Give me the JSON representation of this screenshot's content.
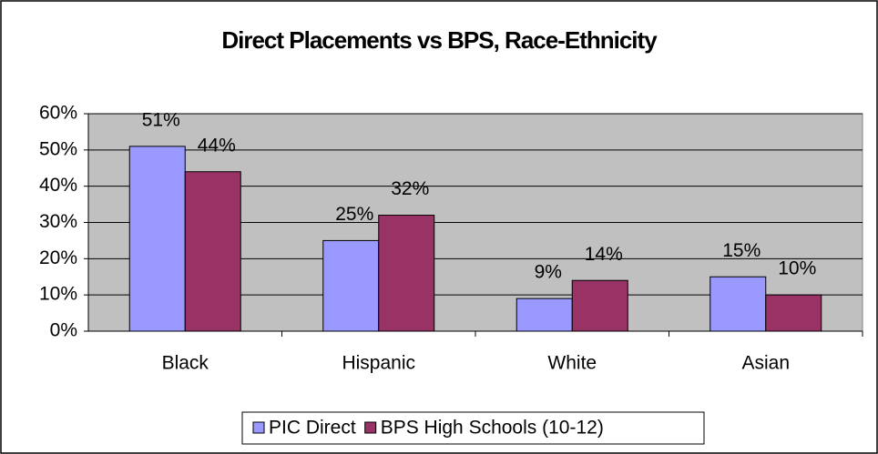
{
  "chart_data": {
    "type": "bar",
    "title": "Direct Placements vs BPS, Race-Ethnicity",
    "categories": [
      "Black",
      "Hispanic",
      "White",
      "Asian"
    ],
    "series": [
      {
        "name": "PIC Direct",
        "color": "#9999ff",
        "values": [
          51,
          25,
          9,
          15
        ],
        "value_labels": [
          "51%",
          "25%",
          "9%",
          "15%"
        ]
      },
      {
        "name": "BPS High Schools (10-12)",
        "color": "#993366",
        "values": [
          44,
          32,
          14,
          10
        ],
        "value_labels": [
          "44%",
          "32%",
          "14%",
          "10%"
        ]
      }
    ],
    "ylim": [
      0,
      60
    ],
    "yticks": [
      {
        "value": 0,
        "label": "0%"
      },
      {
        "value": 10,
        "label": "10%"
      },
      {
        "value": 20,
        "label": "20%"
      },
      {
        "value": 30,
        "label": "30%"
      },
      {
        "value": 40,
        "label": "40%"
      },
      {
        "value": 50,
        "label": "50%"
      },
      {
        "value": 60,
        "label": "60%"
      }
    ],
    "grid": true,
    "legend": "bottom",
    "plot_background": "#c0c0c0"
  }
}
